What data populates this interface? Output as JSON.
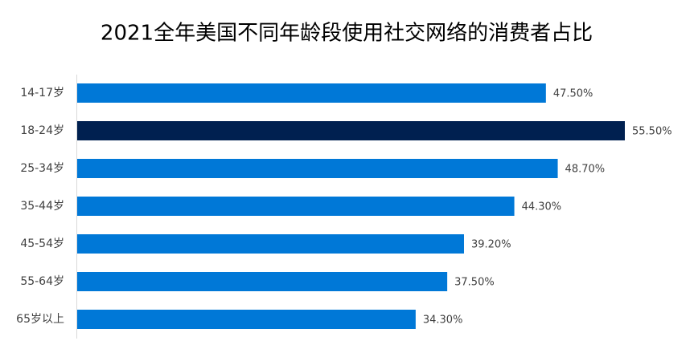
{
  "chart_data": {
    "type": "bar",
    "orientation": "horizontal",
    "title": "2021全年美国不同年龄段使用社交网络的消费者占比",
    "categories": [
      "14-17岁",
      "18-24岁",
      "25-34岁",
      "35-44岁",
      "45-54岁",
      "55-64岁",
      "65岁以上"
    ],
    "values": [
      47.5,
      55.5,
      48.7,
      44.3,
      39.2,
      37.5,
      34.3
    ],
    "value_labels": [
      "47.50%",
      "55.50%",
      "48.70%",
      "44.30%",
      "39.20%",
      "37.50%",
      "34.30%"
    ],
    "colors": [
      "#0078d7",
      "#002050",
      "#0078d7",
      "#0078d7",
      "#0078d7",
      "#0078d7",
      "#0078d7"
    ]
  }
}
